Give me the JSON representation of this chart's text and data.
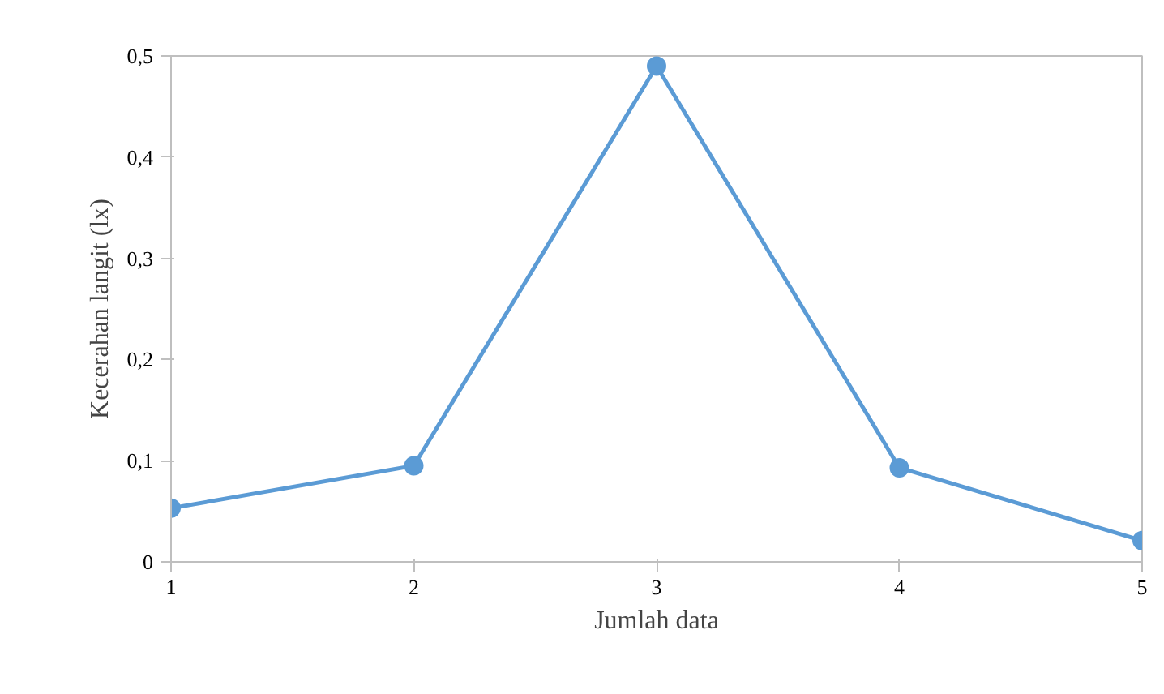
{
  "chart_data": {
    "type": "line",
    "xlabel": "Jumlah data",
    "ylabel": "Kecerahan langit (lx)",
    "x": [
      1,
      2,
      3,
      4,
      5
    ],
    "series": [
      {
        "color": "#5b9bd5",
        "values": [
          0.053,
          0.095,
          0.49,
          0.093,
          0.021
        ]
      }
    ],
    "xlim": [
      1,
      5
    ],
    "xticks": [
      1,
      2,
      3,
      4,
      5
    ],
    "ylim": [
      0,
      0.5
    ],
    "yticks": [
      0,
      {
        "value": 0.1,
        "label": "0,1"
      },
      {
        "value": 0.2,
        "label": "0,2"
      },
      {
        "value": 0.3,
        "label": "0,3"
      },
      {
        "value": 0.4,
        "label": "0,4"
      },
      {
        "value": 0.5,
        "label": "0,5"
      }
    ],
    "grid": false,
    "marker": "circle",
    "line_style": "solid"
  }
}
